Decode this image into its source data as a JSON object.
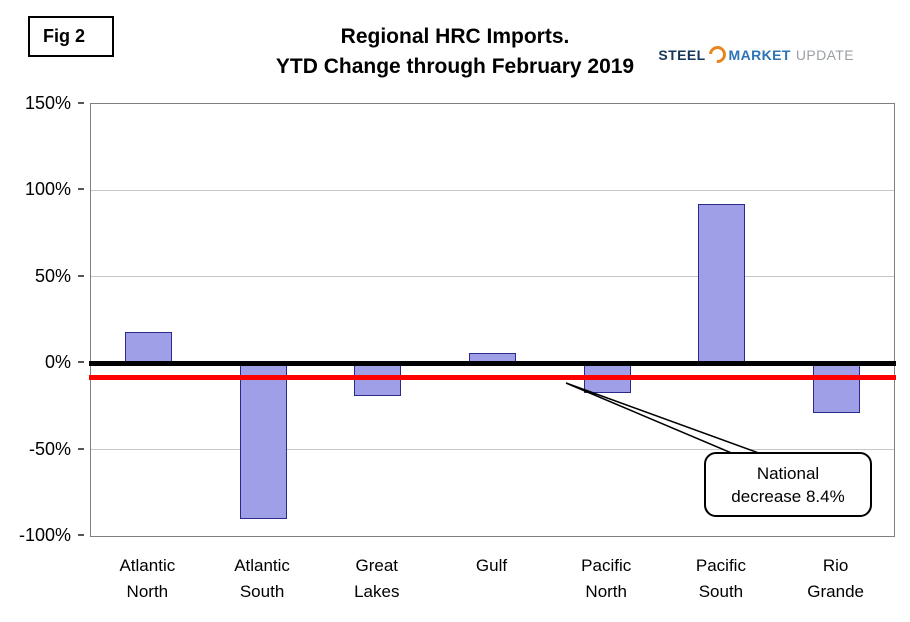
{
  "figure": {
    "label": "Fig 2"
  },
  "title": {
    "line1": "Regional HRC Imports.",
    "line2": "YTD Change through February 2019"
  },
  "logo": {
    "steel": "STEEL",
    "market": "MARKET",
    "update": "UPDATE",
    "swoosh_color": "#e8851c",
    "steel_color": "#17365d",
    "market_color": "#2e74b5",
    "update_color": "#9ba0a5"
  },
  "callout": {
    "line1": "National",
    "line2": "decrease 8.4%"
  },
  "chart_data": {
    "type": "bar",
    "title": "Regional HRC Imports. YTD Change through February 2019",
    "categories": [
      "Atlantic North",
      "Atlantic South",
      "Great Lakes",
      "Gulf",
      "Pacific North",
      "Pacific South",
      "Rio Grande"
    ],
    "values": [
      18,
      -90,
      -19,
      6,
      -17,
      92,
      -29
    ],
    "xlabel": "",
    "ylabel": "",
    "ylim": [
      -100,
      150
    ],
    "yticks": [
      150,
      100,
      50,
      0,
      -50,
      -100
    ],
    "ytick_labels": [
      "150%",
      "100%",
      "50%",
      "0%",
      "-50%",
      "-100%"
    ],
    "grid": true,
    "legend": false,
    "bar_color": "#9f9fe8",
    "bar_border_color": "#2a2a8c",
    "reference_lines": [
      {
        "name": "zero-line",
        "value": 0,
        "color": "#000000"
      },
      {
        "name": "national-decrease-line",
        "value": -8.4,
        "color": "#ff0000"
      }
    ],
    "annotation": {
      "text": "National decrease 8.4%",
      "points_to_value": -8.4
    }
  }
}
